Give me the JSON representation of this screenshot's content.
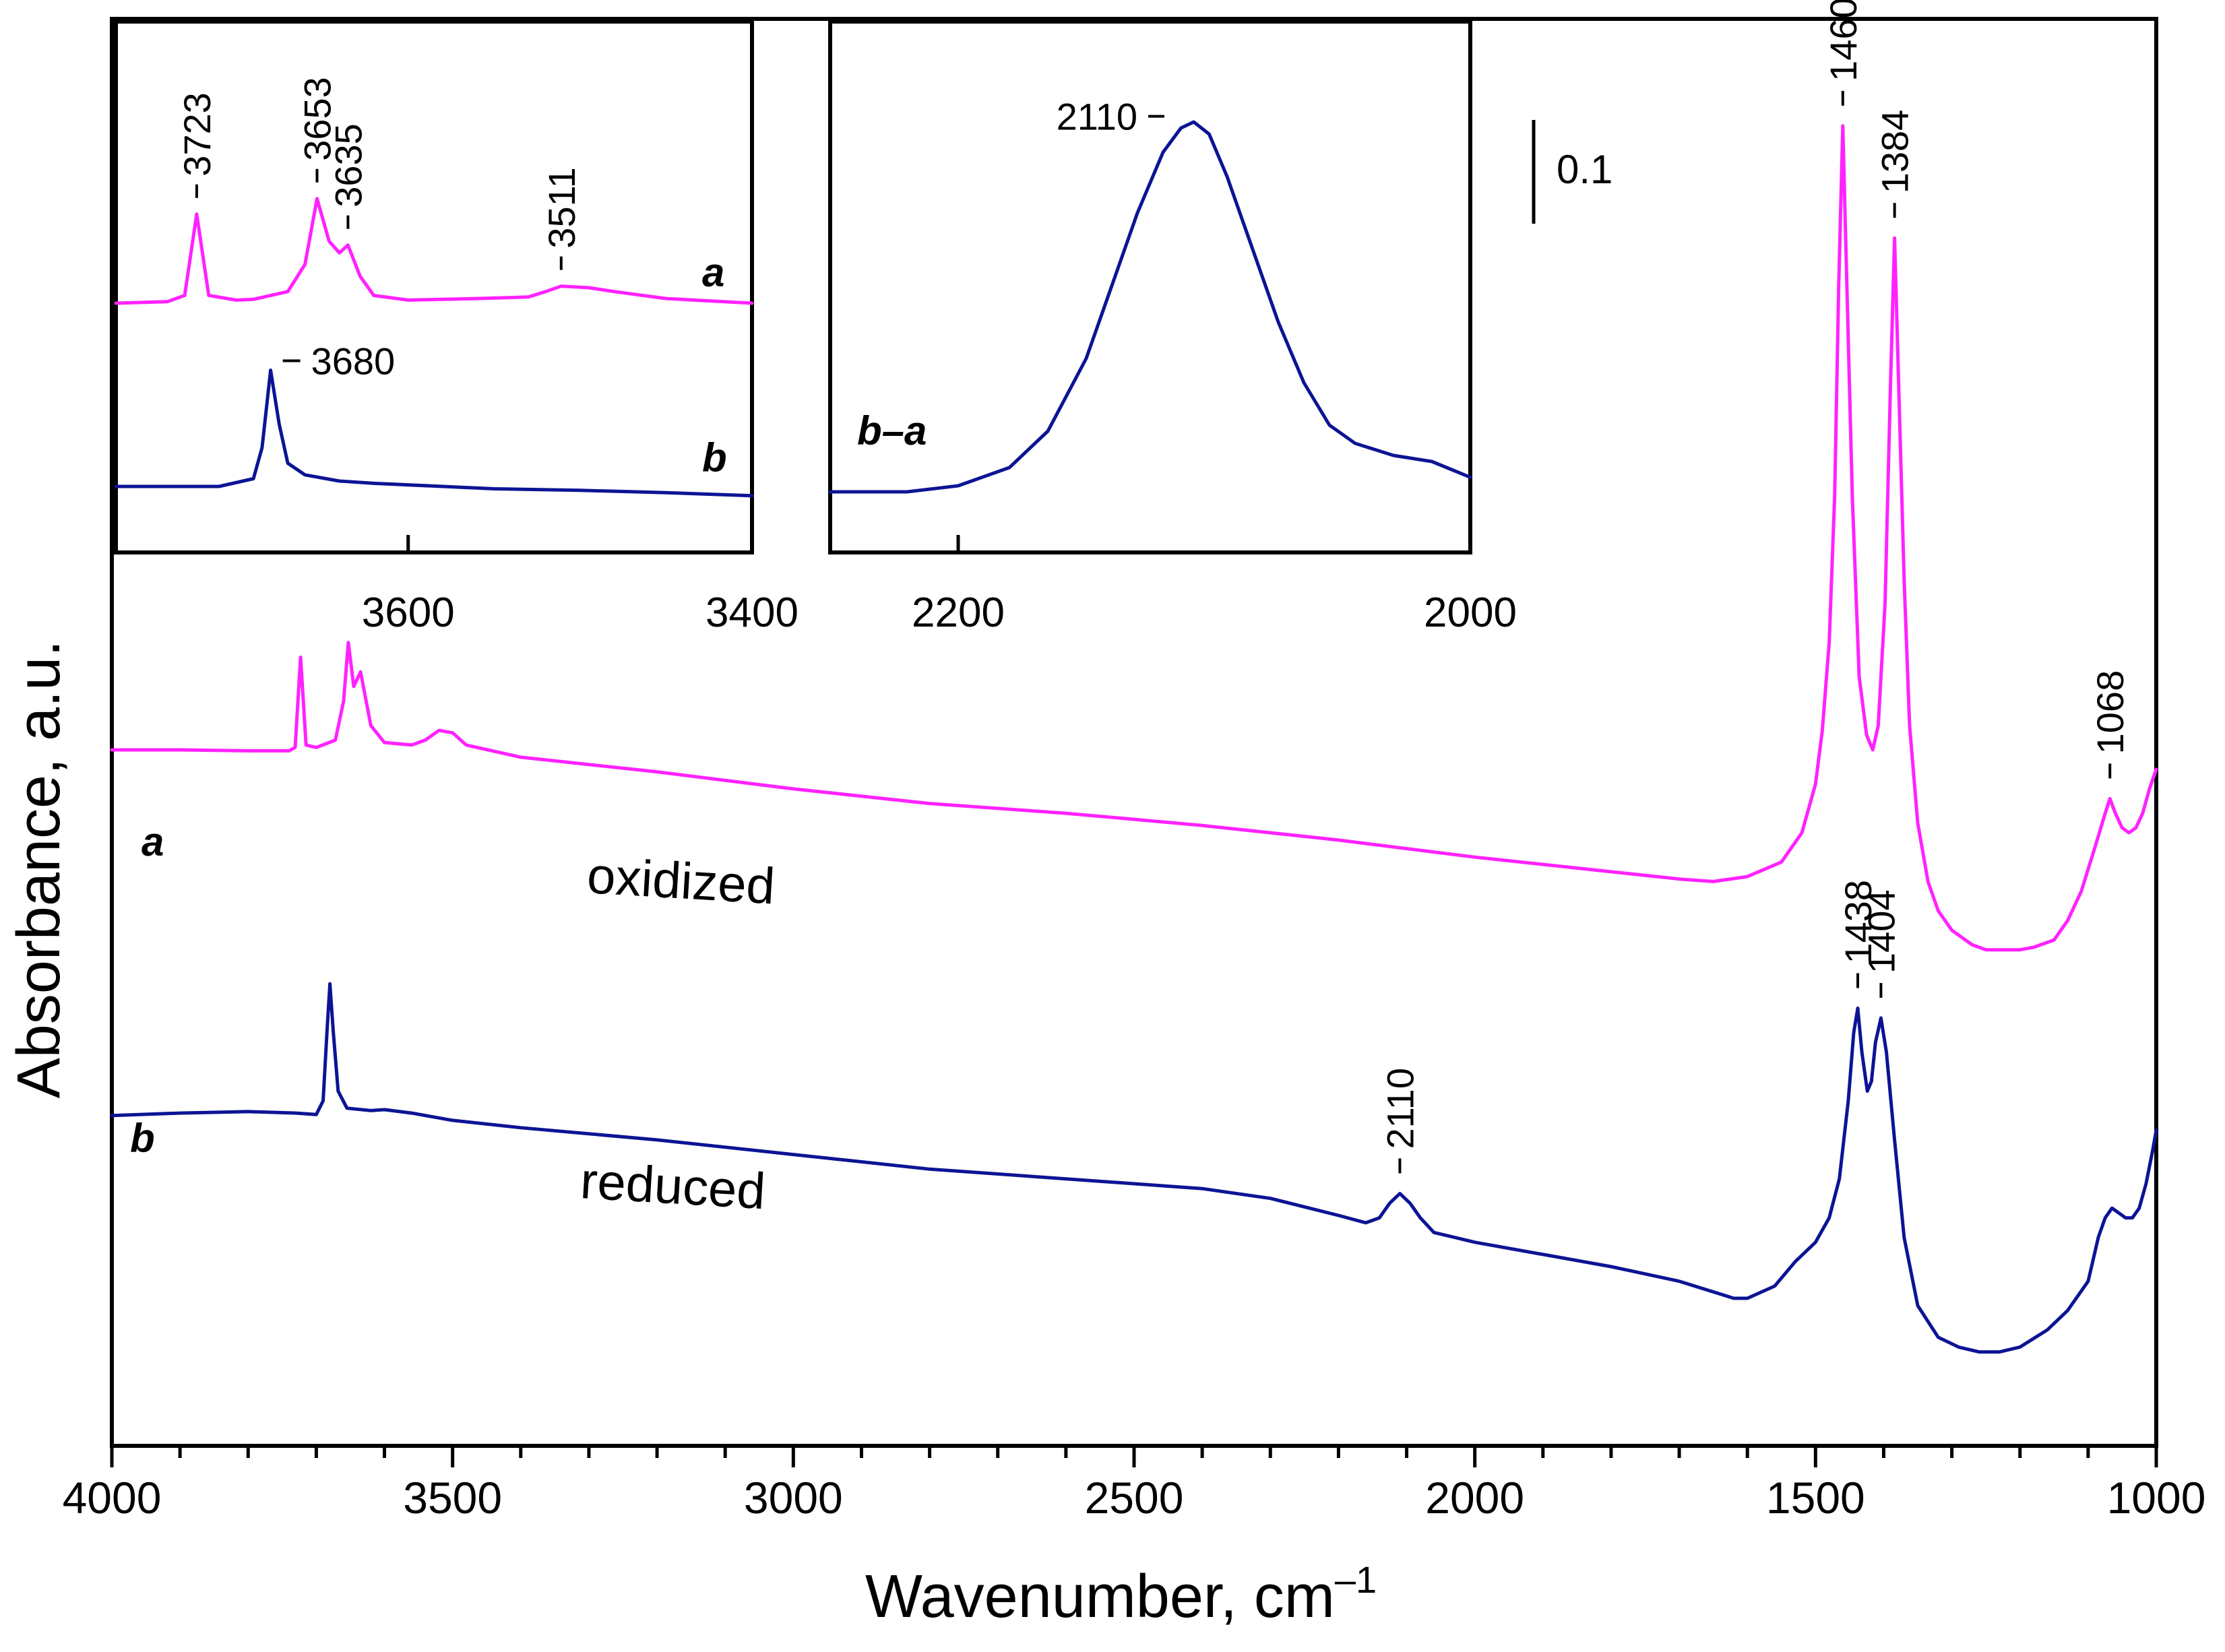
{
  "colors": {
    "oxidized": "#ff22ff",
    "reduced": "#0c1494",
    "axis": "#000000"
  },
  "chart_data": [
    {
      "id": "main",
      "type": "line",
      "xlabel": "Wavenumber, cm",
      "xlabel_superscript": "–1",
      "ylabel": "Absorbance, a.u.",
      "xlim": [
        4000,
        1000
      ],
      "x_ticks": [
        4000,
        3500,
        3000,
        2500,
        2000,
        1500,
        1000
      ],
      "x_tick_labels": [
        "4000",
        "3500",
        "3000",
        "2500",
        "2000",
        "1500",
        "1000"
      ],
      "scale_bar": {
        "label": "0.1",
        "value": 0.1
      },
      "series": [
        {
          "name": "a",
          "label": "oxidized",
          "color": "#ff22ff",
          "points": [
            [
              4000,
              1.4
            ],
            [
              3900,
              1.4
            ],
            [
              3800,
              1.398
            ],
            [
              3740,
              1.398
            ],
            [
              3731,
              1.405
            ],
            [
              3723,
              1.59
            ],
            [
              3715,
              1.41
            ],
            [
              3700,
              1.405
            ],
            [
              3672,
              1.42
            ],
            [
              3660,
              1.5
            ],
            [
              3653,
              1.62
            ],
            [
              3645,
              1.53
            ],
            [
              3635,
              1.56
            ],
            [
              3620,
              1.45
            ],
            [
              3600,
              1.415
            ],
            [
              3560,
              1.41
            ],
            [
              3540,
              1.42
            ],
            [
              3520,
              1.44
            ],
            [
              3500,
              1.435
            ],
            [
              3480,
              1.41
            ],
            [
              3400,
              1.385
            ],
            [
              3200,
              1.355
            ],
            [
              3000,
              1.32
            ],
            [
              2800,
              1.29
            ],
            [
              2600,
              1.27
            ],
            [
              2400,
              1.245
            ],
            [
              2200,
              1.215
            ],
            [
              2000,
              1.18
            ],
            [
              1800,
              1.15
            ],
            [
              1700,
              1.135
            ],
            [
              1650,
              1.13
            ],
            [
              1600,
              1.14
            ],
            [
              1550,
              1.17
            ],
            [
              1520,
              1.23
            ],
            [
              1500,
              1.33
            ],
            [
              1490,
              1.44
            ],
            [
              1480,
              1.62
            ],
            [
              1472,
              1.92
            ],
            [
              1466,
              2.35
            ],
            [
              1460,
              2.68
            ],
            [
              1454,
              2.35
            ],
            [
              1446,
              1.92
            ],
            [
              1436,
              1.55
            ],
            [
              1425,
              1.43
            ],
            [
              1416,
              1.4
            ],
            [
              1408,
              1.45
            ],
            [
              1398,
              1.7
            ],
            [
              1390,
              2.15
            ],
            [
              1384,
              2.45
            ],
            [
              1378,
              2.15
            ],
            [
              1370,
              1.75
            ],
            [
              1362,
              1.45
            ],
            [
              1350,
              1.25
            ],
            [
              1335,
              1.13
            ],
            [
              1320,
              1.07
            ],
            [
              1300,
              1.03
            ],
            [
              1270,
              1.0
            ],
            [
              1250,
              0.99
            ],
            [
              1200,
              0.99
            ],
            [
              1180,
              0.995
            ],
            [
              1150,
              1.01
            ],
            [
              1130,
              1.05
            ],
            [
              1110,
              1.11
            ],
            [
              1090,
              1.2
            ],
            [
              1075,
              1.27
            ],
            [
              1068,
              1.3
            ],
            [
              1060,
              1.27
            ],
            [
              1050,
              1.24
            ],
            [
              1040,
              1.23
            ],
            [
              1030,
              1.24
            ],
            [
              1020,
              1.27
            ],
            [
              1010,
              1.32
            ],
            [
              1000,
              1.36
            ]
          ]
        },
        {
          "name": "b",
          "label": "reduced",
          "color": "#0c1494",
          "points": [
            [
              4000,
              0.65
            ],
            [
              3900,
              0.655
            ],
            [
              3800,
              0.658
            ],
            [
              3730,
              0.655
            ],
            [
              3700,
              0.652
            ],
            [
              3690,
              0.68
            ],
            [
              3684,
              0.83
            ],
            [
              3680,
              0.92
            ],
            [
              3675,
              0.82
            ],
            [
              3668,
              0.7
            ],
            [
              3655,
              0.665
            ],
            [
              3620,
              0.66
            ],
            [
              3600,
              0.662
            ],
            [
              3560,
              0.655
            ],
            [
              3500,
              0.64
            ],
            [
              3400,
              0.625
            ],
            [
              3200,
              0.6
            ],
            [
              3000,
              0.57
            ],
            [
              2800,
              0.54
            ],
            [
              2600,
              0.52
            ],
            [
              2400,
              0.5
            ],
            [
              2300,
              0.48
            ],
            [
              2200,
              0.445
            ],
            [
              2160,
              0.43
            ],
            [
              2140,
              0.44
            ],
            [
              2125,
              0.47
            ],
            [
              2110,
              0.49
            ],
            [
              2095,
              0.47
            ],
            [
              2080,
              0.44
            ],
            [
              2060,
              0.41
            ],
            [
              2000,
              0.39
            ],
            [
              1800,
              0.34
            ],
            [
              1700,
              0.31
            ],
            [
              1620,
              0.275
            ],
            [
              1600,
              0.275
            ],
            [
              1560,
              0.3
            ],
            [
              1530,
              0.35
            ],
            [
              1500,
              0.39
            ],
            [
              1480,
              0.44
            ],
            [
              1465,
              0.52
            ],
            [
              1452,
              0.68
            ],
            [
              1444,
              0.82
            ],
            [
              1438,
              0.87
            ],
            [
              1432,
              0.78
            ],
            [
              1424,
              0.7
            ],
            [
              1418,
              0.72
            ],
            [
              1412,
              0.8
            ],
            [
              1404,
              0.85
            ],
            [
              1396,
              0.78
            ],
            [
              1384,
              0.6
            ],
            [
              1370,
              0.4
            ],
            [
              1350,
              0.26
            ],
            [
              1320,
              0.195
            ],
            [
              1290,
              0.175
            ],
            [
              1260,
              0.165
            ],
            [
              1230,
              0.165
            ],
            [
              1200,
              0.175
            ],
            [
              1160,
              0.21
            ],
            [
              1130,
              0.25
            ],
            [
              1100,
              0.31
            ],
            [
              1085,
              0.4
            ],
            [
              1075,
              0.44
            ],
            [
              1065,
              0.46
            ],
            [
              1055,
              0.45
            ],
            [
              1045,
              0.44
            ],
            [
              1035,
              0.44
            ],
            [
              1025,
              0.46
            ],
            [
              1015,
              0.51
            ],
            [
              1005,
              0.58
            ],
            [
              1000,
              0.62
            ]
          ]
        }
      ],
      "annotations": [
        {
          "text": "1460",
          "series": "a",
          "x": 1460
        },
        {
          "text": "1384",
          "series": "a",
          "x": 1384
        },
        {
          "text": "1068",
          "series": "a",
          "x": 1068
        },
        {
          "text": "2110",
          "series": "b",
          "x": 2110
        },
        {
          "text": "1438",
          "series": "b",
          "x": 1438
        },
        {
          "text": "1404",
          "series": "b",
          "x": 1404
        }
      ],
      "curve_labels": [
        "a",
        "b"
      ],
      "name_labels": [
        "oxidized",
        "reduced"
      ]
    },
    {
      "id": "inset-oh",
      "type": "line",
      "xlim": [
        3770,
        3400
      ],
      "x_ticks": [
        3600,
        3400
      ],
      "x_tick_labels": [
        "3600",
        "3400"
      ],
      "series": [
        {
          "name": "a",
          "color": "#ff22ff",
          "points": [
            [
              3770,
              0.0
            ],
            [
              3740,
              0.002
            ],
            [
              3730,
              0.01
            ],
            [
              3723,
              0.115
            ],
            [
              3716,
              0.01
            ],
            [
              3700,
              0.004
            ],
            [
              3690,
              0.005
            ],
            [
              3670,
              0.015
            ],
            [
              3660,
              0.05
            ],
            [
              3653,
              0.135
            ],
            [
              3646,
              0.08
            ],
            [
              3640,
              0.065
            ],
            [
              3635,
              0.075
            ],
            [
              3628,
              0.035
            ],
            [
              3620,
              0.01
            ],
            [
              3600,
              0.004
            ],
            [
              3560,
              0.006
            ],
            [
              3530,
              0.008
            ],
            [
              3520,
              0.015
            ],
            [
              3511,
              0.022
            ],
            [
              3495,
              0.02
            ],
            [
              3480,
              0.015
            ],
            [
              3450,
              0.006
            ],
            [
              3400,
              0.0
            ]
          ]
        },
        {
          "name": "b",
          "color": "#0c1494",
          "points": [
            [
              3770,
              0.0
            ],
            [
              3740,
              0.0
            ],
            [
              3710,
              0.0
            ],
            [
              3690,
              0.01
            ],
            [
              3685,
              0.05
            ],
            [
              3680,
              0.15
            ],
            [
              3675,
              0.08
            ],
            [
              3670,
              0.03
            ],
            [
              3660,
              0.015
            ],
            [
              3640,
              0.007
            ],
            [
              3620,
              0.004
            ],
            [
              3580,
              0.0
            ],
            [
              3550,
              -0.003
            ],
            [
              3500,
              -0.005
            ],
            [
              3450,
              -0.008
            ],
            [
              3400,
              -0.012
            ]
          ]
        }
      ],
      "annotations": [
        {
          "text": "3723",
          "series": "a",
          "x": 3723
        },
        {
          "text": "3653",
          "series": "a",
          "x": 3653
        },
        {
          "text": "3635",
          "series": "a",
          "x": 3635
        },
        {
          "text": "3511",
          "series": "a",
          "x": 3511
        },
        {
          "text": "3680",
          "series": "b",
          "x": 3680
        }
      ],
      "curve_labels": [
        "a",
        "b"
      ]
    },
    {
      "id": "inset-co",
      "type": "line",
      "xlim": [
        2250,
        2000
      ],
      "x_ticks": [
        2200,
        2000
      ],
      "x_tick_labels": [
        "2200",
        "2000"
      ],
      "series": [
        {
          "name": "b–a",
          "color": "#0c1494",
          "points": [
            [
              2250,
              0.0
            ],
            [
              2220,
              0.0
            ],
            [
              2200,
              0.005
            ],
            [
              2180,
              0.02
            ],
            [
              2165,
              0.05
            ],
            [
              2150,
              0.11
            ],
            [
              2140,
              0.17
            ],
            [
              2130,
              0.23
            ],
            [
              2120,
              0.28
            ],
            [
              2113,
              0.3
            ],
            [
              2108,
              0.305
            ],
            [
              2102,
              0.295
            ],
            [
              2095,
              0.26
            ],
            [
              2085,
              0.2
            ],
            [
              2075,
              0.14
            ],
            [
              2065,
              0.09
            ],
            [
              2055,
              0.055
            ],
            [
              2045,
              0.04
            ],
            [
              2030,
              0.03
            ],
            [
              2015,
              0.025
            ],
            [
              2000,
              0.012
            ]
          ]
        }
      ],
      "annotations": [
        {
          "text": "2110",
          "series": "b–a",
          "x": 2110
        }
      ],
      "curve_labels": [
        "b–a"
      ]
    }
  ]
}
